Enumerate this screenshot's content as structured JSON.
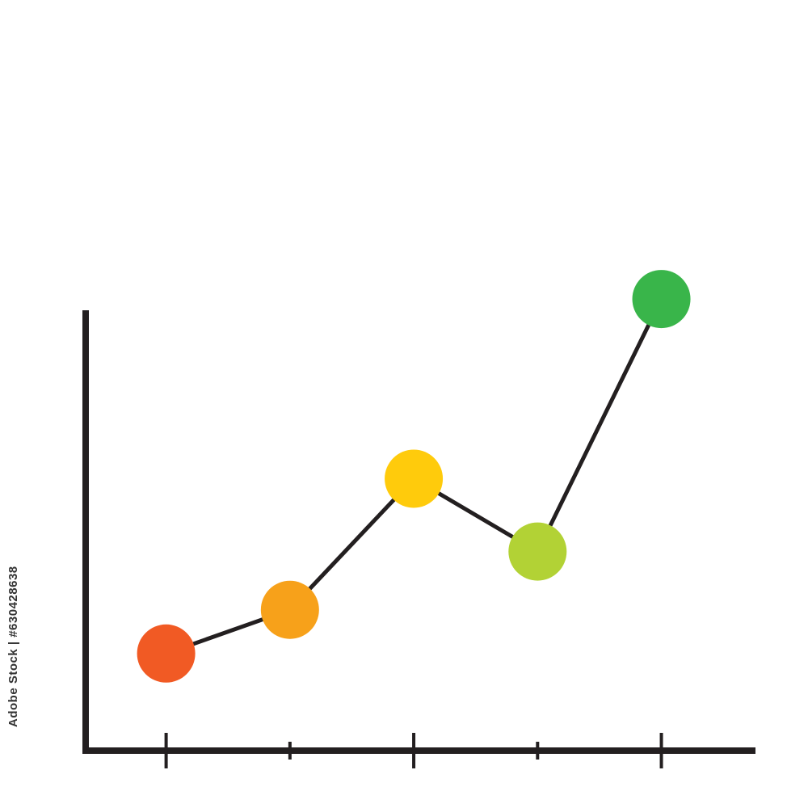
{
  "chart_data": {
    "type": "line",
    "title": "",
    "xlabel": "",
    "ylabel": "",
    "x": [
      1,
      2,
      3,
      4,
      5
    ],
    "ylim": [
      0,
      10
    ],
    "xlim": [
      0.35,
      5.76
    ],
    "major_ticks": [
      1,
      3,
      5
    ],
    "minor_ticks": [
      2,
      4
    ],
    "grid": false,
    "legend": "none",
    "series": [
      {
        "values": [
          2.0,
          2.9,
          5.6,
          4.1,
          9.3
        ],
        "line_color": "#231f20",
        "point_colors": [
          "#f15a24",
          "#f7a11a",
          "#ffcb0c",
          "#b2d235",
          "#39b54a"
        ]
      }
    ],
    "axis_color": "#231f20"
  },
  "watermark": {
    "id_text": "Adobe Stock | #630428638"
  }
}
